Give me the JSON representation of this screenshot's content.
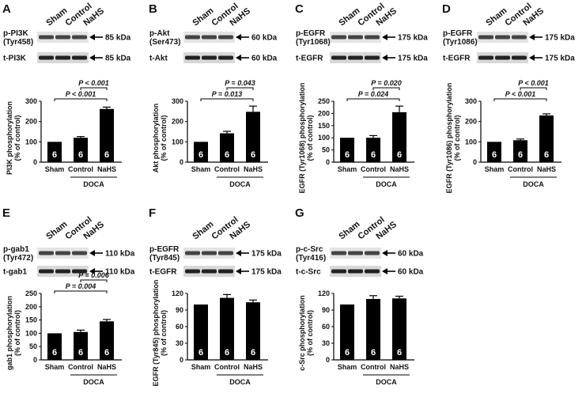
{
  "chart_data": [
    {
      "type": "bar",
      "panel": "A",
      "lanes": [
        "Sham",
        "Control",
        "NaHS"
      ],
      "blots": [
        {
          "label": [
            "p-PI3K",
            "(Tyr458)"
          ],
          "size": "85 kDa"
        },
        {
          "label": [
            "t-PI3K"
          ],
          "size": "85 kDa"
        }
      ],
      "y_label": [
        "PI3K phosphorylation",
        "(% of control)"
      ],
      "categories": [
        "Sham",
        "Control",
        "NaHS"
      ],
      "values": [
        100,
        120,
        262
      ],
      "errors": [
        0,
        6,
        9
      ],
      "n": [
        6,
        6,
        6
      ],
      "color": "#000000",
      "ylim": [
        0,
        300
      ],
      "yticks": [
        0,
        100,
        200,
        300
      ],
      "group_label": "DOCA",
      "annotations": [
        "P < 0.001",
        "P < 0.001"
      ]
    },
    {
      "type": "bar",
      "panel": "B",
      "lanes": [
        "Sham",
        "Control",
        "NaHS"
      ],
      "blots": [
        {
          "label": [
            "p-Akt",
            "(Ser473)"
          ],
          "size": "60 kDa"
        },
        {
          "label": [
            "t-Akt"
          ],
          "size": "60 kDa"
        }
      ],
      "y_label": [
        "Akt phosphorylation",
        "(% of control)"
      ],
      "categories": [
        "Sham",
        "Control",
        "NaHS"
      ],
      "values": [
        100,
        142,
        248
      ],
      "errors": [
        0,
        10,
        28
      ],
      "n": [
        6,
        6,
        6
      ],
      "color": "#000000",
      "ylim": [
        0,
        300
      ],
      "yticks": [
        0,
        100,
        200,
        300
      ],
      "group_label": "DOCA",
      "annotations": [
        "P = 0.043",
        "P = 0.013"
      ]
    },
    {
      "type": "bar",
      "panel": "C",
      "lanes": [
        "Sham",
        "Control",
        "NaHS"
      ],
      "blots": [
        {
          "label": [
            "p-EGFR",
            "(Tyr1068)"
          ],
          "size": "175 kDa"
        },
        {
          "label": [
            "t-EGFR"
          ],
          "size": "175 kDa"
        }
      ],
      "y_label": [
        "EGFR (Tyr1068) phosphorylation",
        "(% of control)"
      ],
      "categories": [
        "Sham",
        "Control",
        "NaHS"
      ],
      "values": [
        100,
        100,
        205
      ],
      "errors": [
        0,
        9,
        25
      ],
      "n": [
        6,
        6,
        6
      ],
      "color": "#000000",
      "ylim": [
        0,
        250
      ],
      "yticks": [
        0,
        50,
        100,
        150,
        200,
        250
      ],
      "group_label": "DOCA",
      "annotations": [
        "P = 0.020",
        "P = 0.024"
      ]
    },
    {
      "type": "bar",
      "panel": "D",
      "lanes": [
        "Sham",
        "Control",
        "NaHS"
      ],
      "blots": [
        {
          "label": [
            "p-EGFR",
            "(Tyr1086)"
          ],
          "size": "175 kDa"
        },
        {
          "label": [
            "t-EGFR"
          ],
          "size": "175 kDa"
        }
      ],
      "y_label": [
        "EGFR (Tyr1086) phosphorylation",
        "(% of control)"
      ],
      "categories": [
        "Sham",
        "Control",
        "NaHS"
      ],
      "values": [
        100,
        108,
        230
      ],
      "errors": [
        0,
        6,
        8
      ],
      "n": [
        6,
        6,
        6
      ],
      "color": "#000000",
      "ylim": [
        0,
        300
      ],
      "yticks": [
        0,
        100,
        200,
        300
      ],
      "group_label": "DOCA",
      "annotations": [
        "P < 0.001",
        "P < 0.001"
      ]
    },
    {
      "type": "bar",
      "panel": "E",
      "lanes": [
        "Sham",
        "Control",
        "NaHS"
      ],
      "blots": [
        {
          "label": [
            "p-gab1",
            "(Tyr472)"
          ],
          "size": "110 kDa"
        },
        {
          "label": [
            "t-gab1"
          ],
          "size": "110 kDa"
        }
      ],
      "y_label": [
        "gab1 phosphorylation",
        "(% of control)"
      ],
      "categories": [
        "Sham",
        "Control",
        "NaHS"
      ],
      "values": [
        100,
        105,
        145
      ],
      "errors": [
        0,
        7,
        7
      ],
      "n": [
        6,
        6,
        6
      ],
      "color": "#000000",
      "ylim": [
        0,
        250
      ],
      "yticks": [
        0,
        50,
        100,
        150,
        200,
        250
      ],
      "group_label": "DOCA",
      "annotations": [
        "P = 0.006",
        "P = 0.004"
      ]
    },
    {
      "type": "bar",
      "panel": "F",
      "lanes": [
        "Sham",
        "Control",
        "NaHS"
      ],
      "blots": [
        {
          "label": [
            "p-EGFR",
            "(Tyr845)"
          ],
          "size": "175 kDa"
        },
        {
          "label": [
            "t-EGFR"
          ],
          "size": "175 kDa"
        }
      ],
      "y_label": [
        "EGFR (Tyr845) phosphorylation",
        "(% of control)"
      ],
      "categories": [
        "Sham",
        "Control",
        "NaHS"
      ],
      "values": [
        100,
        112,
        104
      ],
      "errors": [
        0,
        6,
        4
      ],
      "n": [
        6,
        6,
        6
      ],
      "color": "#000000",
      "ylim": [
        0,
        120
      ],
      "yticks": [
        0,
        30,
        60,
        90,
        120
      ],
      "group_label": "DOCA",
      "annotations": []
    },
    {
      "type": "bar",
      "panel": "G",
      "lanes": [
        "Sham",
        "Control",
        "NaHS"
      ],
      "blots": [
        {
          "label": [
            "p-c-Src",
            "(Tyr416)"
          ],
          "size": "60 kDa"
        },
        {
          "label": [
            "t-c-Src"
          ],
          "size": "60 kDa"
        }
      ],
      "y_label": [
        "c-Src phosphorylation",
        "(% of control)"
      ],
      "categories": [
        "Sham",
        "Control",
        "NaHS"
      ],
      "values": [
        100,
        110,
        111
      ],
      "errors": [
        0,
        6,
        4
      ],
      "n": [
        6,
        6,
        6
      ],
      "color": "#000000",
      "ylim": [
        0,
        120
      ],
      "yticks": [
        0,
        30,
        60,
        90,
        120
      ],
      "group_label": "DOCA",
      "annotations": []
    }
  ]
}
